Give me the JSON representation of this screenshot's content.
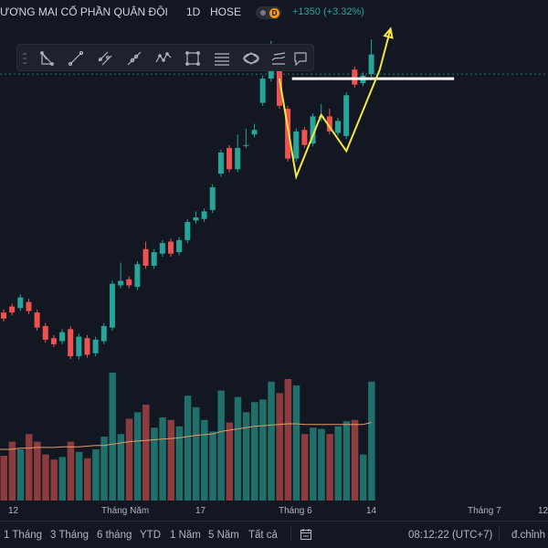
{
  "header": {
    "title": "ƯƠNG MAI CỔ PHẦN QUÂN ĐỘI",
    "interval": "1D",
    "exchange": "HOSE",
    "badge_letter": "D",
    "change": "+1350 (+3.32%)"
  },
  "toolbar": {
    "tools": [
      "triangle-pattern-icon",
      "trend-line-icon",
      "parallel-channel-icon",
      "ray-icon",
      "zigzag-icon",
      "rectangle-icon",
      "fib-lines-icon",
      "ellipse-icon",
      "brush-icon",
      "callout-icon"
    ]
  },
  "x_axis": {
    "labels": [
      "12",
      "Tháng Năm",
      "17",
      "Tháng 6",
      "14",
      "Tháng 7",
      "12"
    ]
  },
  "bottom_bar": {
    "ranges": [
      "1 Tháng",
      "3 Tháng",
      "6 tháng",
      "YTD",
      "1 Năm",
      "5 Năm",
      "Tất cả"
    ],
    "clock": "08:12:22 (UTC+7)",
    "adjust": "đ.chỉnh"
  },
  "colors": {
    "up": "#26a69a",
    "down": "#ef5350",
    "volume_up": "#1f6f6a",
    "volume_down": "#8c3b3e",
    "ma_line": "#e39a6b",
    "pattern_line": "#f5e642",
    "level_line": "#ffffff"
  },
  "chart_data": {
    "type": "candlestick",
    "candles": [
      {
        "o": 0.5,
        "c": 0.1,
        "h": 0.7,
        "l": -0.1
      },
      {
        "o": 0.9,
        "c": 0.5,
        "h": 1.1,
        "l": 0.3
      },
      {
        "o": 0.8,
        "c": 1.5,
        "h": 1.7,
        "l": 0.6
      },
      {
        "o": 1.2,
        "c": 0.6,
        "h": 1.4,
        "l": 0.4
      },
      {
        "o": 0.5,
        "c": -0.5,
        "h": 0.7,
        "l": -0.7
      },
      {
        "o": -0.4,
        "c": -1.3,
        "h": -0.2,
        "l": -1.5
      },
      {
        "o": -1.2,
        "c": -1.6,
        "h": -1.0,
        "l": -1.8
      },
      {
        "o": -1.4,
        "c": -0.8,
        "h": -0.6,
        "l": -1.6
      },
      {
        "o": -0.6,
        "c": -2.4,
        "h": -0.4,
        "l": -2.6
      },
      {
        "o": -2.4,
        "c": -1.1,
        "h": -0.9,
        "l": -2.6
      },
      {
        "o": -1.2,
        "c": -2.3,
        "h": -1.0,
        "l": -2.5
      },
      {
        "o": -2.2,
        "c": -1.3,
        "h": -1.1,
        "l": -2.4
      },
      {
        "o": -1.4,
        "c": -0.4,
        "h": -0.2,
        "l": -1.6
      },
      {
        "o": -0.5,
        "c": 2.4,
        "h": 2.6,
        "l": -0.7
      },
      {
        "o": 2.3,
        "c": 2.6,
        "h": 3.8,
        "l": 2.1
      },
      {
        "o": 2.7,
        "c": 2.3,
        "h": 2.9,
        "l": 2.1
      },
      {
        "o": 2.2,
        "c": 3.7,
        "h": 3.9,
        "l": 2.0
      },
      {
        "o": 4.7,
        "c": 3.6,
        "h": 5.2,
        "l": 3.4
      },
      {
        "o": 3.6,
        "c": 4.5,
        "h": 4.7,
        "l": 3.4
      },
      {
        "o": 4.4,
        "c": 5.1,
        "h": 5.3,
        "l": 4.2
      },
      {
        "o": 5.2,
        "c": 4.4,
        "h": 5.4,
        "l": 4.2
      },
      {
        "o": 4.5,
        "c": 5.3,
        "h": 5.5,
        "l": 4.3
      },
      {
        "o": 5.3,
        "c": 6.5,
        "h": 6.7,
        "l": 5.1
      },
      {
        "o": 6.6,
        "c": 6.8,
        "h": 7.2,
        "l": 6.4
      },
      {
        "o": 6.7,
        "c": 7.2,
        "h": 7.4,
        "l": 6.5
      },
      {
        "o": 7.3,
        "c": 8.8,
        "h": 9.0,
        "l": 7.1
      },
      {
        "o": 9.7,
        "c": 11.1,
        "h": 11.3,
        "l": 9.5
      },
      {
        "o": 11.4,
        "c": 10.0,
        "h": 11.6,
        "l": 9.8
      },
      {
        "o": 10.0,
        "c": 11.4,
        "h": 12.3,
        "l": 9.8
      },
      {
        "o": 11.6,
        "c": 11.6,
        "h": 12.7,
        "l": 11.4
      },
      {
        "o": 12.3,
        "c": 12.6,
        "h": 13.0,
        "l": 12.1
      },
      {
        "o": 14.4,
        "c": 16.0,
        "h": 16.2,
        "l": 14.2
      },
      {
        "o": 16.0,
        "c": 17.1,
        "h": 18.5,
        "l": 15.8
      },
      {
        "o": 17.1,
        "c": 14.2,
        "h": 17.3,
        "l": 14.0
      },
      {
        "o": 14.0,
        "c": 10.7,
        "h": 14.2,
        "l": 10.5
      },
      {
        "o": 10.7,
        "c": 12.5,
        "h": 12.7,
        "l": 10.5
      },
      {
        "o": 12.6,
        "c": 11.6,
        "h": 12.8,
        "l": 11.4
      },
      {
        "o": 11.7,
        "c": 13.5,
        "h": 13.7,
        "l": 11.5
      },
      {
        "o": 13.4,
        "c": 13.5,
        "h": 14.3,
        "l": 13.2
      },
      {
        "o": 13.5,
        "c": 12.5,
        "h": 14.0,
        "l": 12.3
      },
      {
        "o": 12.4,
        "c": 13.2,
        "h": 13.4,
        "l": 12.2
      },
      {
        "o": 12.2,
        "c": 14.9,
        "h": 15.1,
        "l": 12.0
      },
      {
        "o": 16.6,
        "c": 15.6,
        "h": 16.8,
        "l": 15.4
      },
      {
        "o": 15.7,
        "c": 16.2,
        "h": 16.4,
        "l": 15.5
      },
      {
        "o": 16.3,
        "c": 17.6,
        "h": 18.6,
        "l": 16.1
      }
    ],
    "volume": [
      35,
      46,
      40,
      52,
      46,
      36,
      32,
      34,
      46,
      38,
      33,
      40,
      50,
      100,
      52,
      64,
      69,
      75,
      57,
      65,
      63,
      58,
      82,
      73,
      63,
      54,
      86,
      61,
      81,
      69,
      77,
      79,
      93,
      84,
      95,
      90,
      52,
      57,
      56,
      52,
      58,
      62,
      63,
      36,
      93
    ],
    "moving_average": [
      40,
      40,
      41,
      41,
      41.5,
      41.5,
      41.5,
      42,
      42,
      42,
      42.5,
      43,
      43,
      44,
      45,
      46,
      46.5,
      47,
      47.5,
      48,
      48.5,
      49,
      50,
      51,
      51.5,
      52,
      54,
      55,
      56,
      57,
      58,
      58.5,
      59,
      59.5,
      60,
      60,
      59.5,
      59.5,
      59.5,
      59.5,
      59.5,
      59.5,
      59.5,
      59.5,
      61
    ],
    "ylim": [
      -3,
      20
    ],
    "volume_max": 100,
    "resistance_level": 16.0,
    "dashed_level": 16.3,
    "pattern_points": [
      {
        "i": 33,
        "v": 16.0
      },
      {
        "i": 35,
        "v": 9.5
      },
      {
        "i": 38,
        "v": 13.6
      },
      {
        "i": 41,
        "v": 11.2
      },
      {
        "i": 45,
        "v": 16.6
      },
      {
        "i": 46.3,
        "v": 19.3
      }
    ]
  }
}
